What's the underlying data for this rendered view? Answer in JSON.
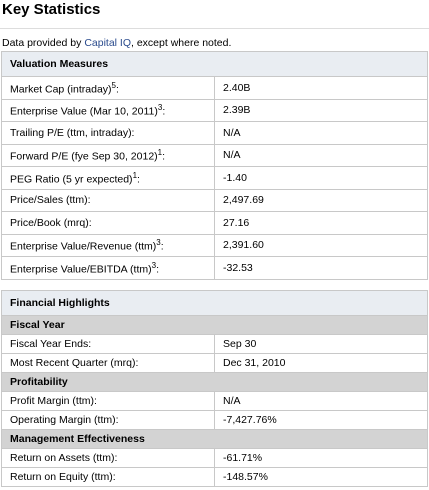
{
  "header": {
    "title": "Key Statistics",
    "source_prefix": "Data provided by ",
    "source_link": "Capital IQ",
    "source_suffix": ", except where noted."
  },
  "valuation": {
    "title": "Valuation Measures",
    "rows": [
      {
        "label": "Market Cap (intraday)",
        "sup": "5",
        "suffix": ":",
        "value": "2.40B"
      },
      {
        "label": "Enterprise Value (Mar 10, 2011)",
        "sup": "3",
        "suffix": ":",
        "value": "2.39B"
      },
      {
        "label": "Trailing P/E (ttm, intraday):",
        "value": "N/A"
      },
      {
        "label": "Forward P/E (fye Sep 30, 2012)",
        "sup": "1",
        "suffix": ":",
        "value": "N/A"
      },
      {
        "label": "PEG Ratio (5 yr expected)",
        "sup": "1",
        "suffix": ":",
        "value": "-1.40"
      },
      {
        "label": "Price/Sales (ttm):",
        "value": "2,497.69"
      },
      {
        "label": "Price/Book (mrq):",
        "value": "27.16"
      },
      {
        "label": "Enterprise Value/Revenue (ttm)",
        "sup": "3",
        "suffix": ":",
        "value": "2,391.60"
      },
      {
        "label": "Enterprise Value/EBITDA (ttm)",
        "sup": "3",
        "suffix": ":",
        "value": "-32.53"
      }
    ]
  },
  "financial": {
    "title": "Financial Highlights",
    "sections": [
      {
        "title": "Fiscal Year",
        "rows": [
          {
            "label": "Fiscal Year Ends:",
            "value": "Sep 30"
          },
          {
            "label": "Most Recent Quarter (mrq):",
            "value": "Dec 31, 2010"
          }
        ]
      },
      {
        "title": "Profitability",
        "rows": [
          {
            "label": "Profit Margin (ttm):",
            "value": "N/A"
          },
          {
            "label": "Operating Margin (ttm):",
            "value": "-7,427.76%"
          }
        ]
      },
      {
        "title": "Management Effectiveness",
        "rows": [
          {
            "label": "Return on Assets (ttm):",
            "value": "-61.71%"
          },
          {
            "label": "Return on Equity (ttm):",
            "value": "-148.57%"
          }
        ]
      }
    ]
  }
}
